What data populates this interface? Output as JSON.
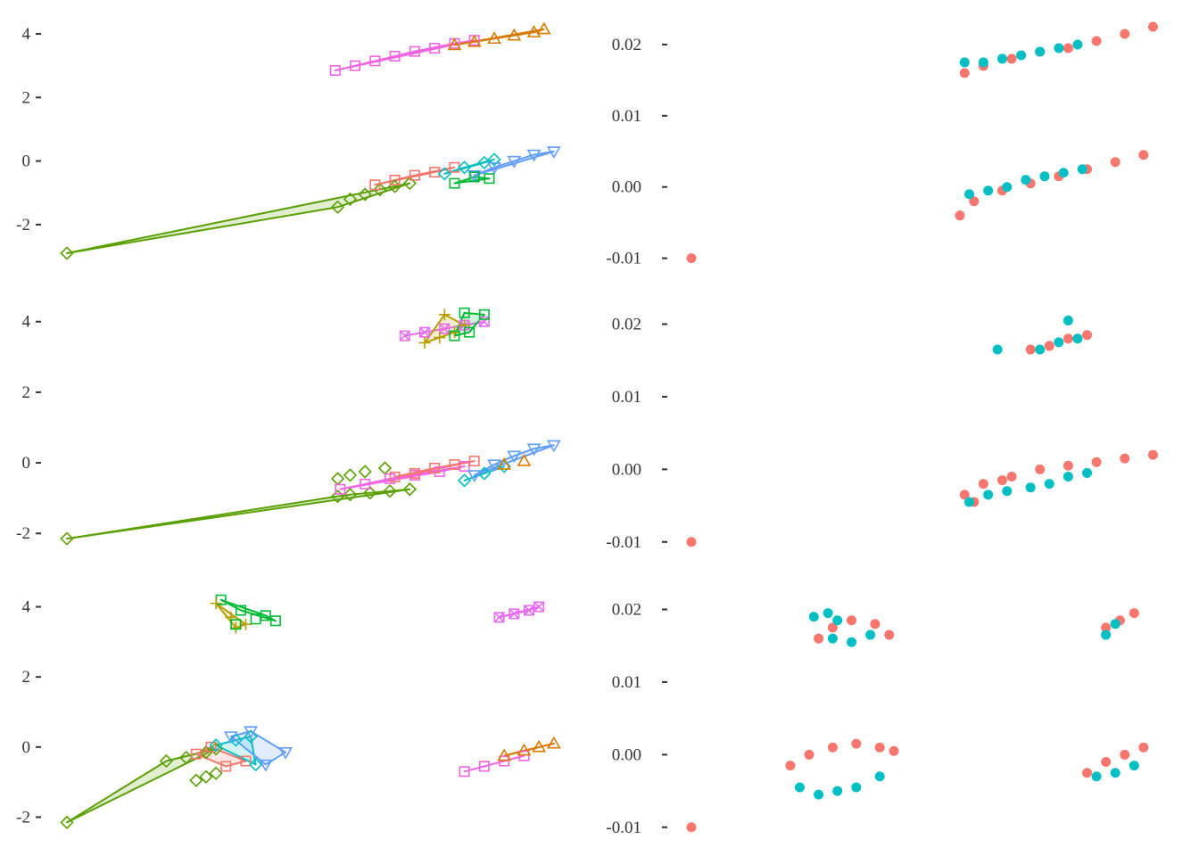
{
  "chart_data": [
    {
      "panel": "row1-left",
      "type": "scatter",
      "yticks": [
        -2,
        0,
        2,
        4
      ],
      "ytick_labels": [
        "-2",
        "0",
        "2",
        "4"
      ],
      "ylim": [
        -3.35,
        4.45
      ],
      "xlim": [
        0,
        1
      ],
      "grid": false,
      "legend": "none",
      "groups": [
        {
          "color": "#F564E3",
          "marker": "square",
          "hull": true,
          "x": [
            0.54,
            0.58,
            0.62,
            0.66,
            0.7,
            0.74,
            0.78,
            0.82
          ],
          "y": [
            2.85,
            3.0,
            3.15,
            3.3,
            3.45,
            3.55,
            3.7,
            3.8
          ]
        },
        {
          "color": "#D97A00",
          "marker": "triangle",
          "hull": true,
          "x": [
            0.78,
            0.82,
            0.86,
            0.9,
            0.94,
            0.96
          ],
          "y": [
            3.65,
            3.75,
            3.85,
            3.95,
            4.05,
            4.15
          ]
        },
        {
          "color": "#5AA000",
          "marker": "diamond",
          "hull": true,
          "x": [
            0.0,
            0.545,
            0.57,
            0.6,
            0.63,
            0.66,
            0.69
          ],
          "y": [
            -2.9,
            -1.45,
            -1.2,
            -1.05,
            -0.9,
            -0.8,
            -0.7
          ]
        },
        {
          "color": "#F8766D",
          "marker": "square",
          "hull": true,
          "x": [
            0.62,
            0.66,
            0.7,
            0.74,
            0.78
          ],
          "y": [
            -0.75,
            -0.6,
            -0.45,
            -0.35,
            -0.2
          ]
        },
        {
          "color": "#00BFC4",
          "marker": "diamond",
          "hull": true,
          "x": [
            0.76,
            0.8,
            0.84,
            0.86
          ],
          "y": [
            -0.4,
            -0.2,
            -0.05,
            0.05
          ]
        },
        {
          "color": "#619CFF",
          "marker": "triangle-down",
          "hull": true,
          "x": [
            0.82,
            0.86,
            0.9,
            0.94,
            0.98
          ],
          "y": [
            -0.45,
            -0.2,
            0.0,
            0.2,
            0.3
          ]
        },
        {
          "color": "#00BA38",
          "marker": "square",
          "hull": true,
          "x": [
            0.78,
            0.82,
            0.85
          ],
          "y": [
            -0.7,
            -0.5,
            -0.55
          ]
        }
      ]
    },
    {
      "panel": "row1-right",
      "type": "scatter",
      "yticks": [
        -0.01,
        0.0,
        0.01,
        0.02
      ],
      "ytick_labels": [
        "-0.01",
        "0.00",
        "0.01",
        "0.02"
      ],
      "ylim": [
        -0.0113,
        0.0235
      ],
      "xlim": [
        0,
        1
      ],
      "grid": false,
      "legend": "none",
      "series": [
        {
          "color": "#F8766D",
          "x": [
            0.0,
            0.58,
            0.62,
            0.68,
            0.74,
            0.8,
            0.86,
            0.92,
            0.98,
            0.57,
            0.6,
            0.66,
            0.72,
            0.78,
            0.84,
            0.9,
            0.96
          ],
          "y": [
            -0.01,
            0.016,
            0.017,
            0.018,
            0.019,
            0.0195,
            0.0205,
            0.0215,
            0.0225,
            -0.004,
            -0.002,
            -0.0005,
            0.0005,
            0.0015,
            0.0025,
            0.0035,
            0.0045
          ]
        },
        {
          "color": "#00BFC4",
          "x": [
            0.58,
            0.62,
            0.66,
            0.7,
            0.74,
            0.78,
            0.82,
            0.59,
            0.63,
            0.67,
            0.71,
            0.75,
            0.79,
            0.83
          ],
          "y": [
            0.0175,
            0.0175,
            0.018,
            0.0185,
            0.019,
            0.0195,
            0.02,
            -0.001,
            -0.0005,
            0.0,
            0.001,
            0.0015,
            0.002,
            0.0025
          ]
        }
      ]
    },
    {
      "panel": "row2-left",
      "type": "scatter",
      "yticks": [
        -2,
        0,
        2,
        4
      ],
      "ytick_labels": [
        "-2",
        "0",
        "2",
        "4"
      ],
      "ylim": [
        -2.55,
        4.65
      ],
      "xlim": [
        0,
        1
      ],
      "grid": false,
      "legend": "none",
      "groups": [
        {
          "color": "#E76BF3",
          "marker": "square-x",
          "hull": true,
          "x": [
            0.68,
            0.72,
            0.76,
            0.8,
            0.84
          ],
          "y": [
            3.6,
            3.7,
            3.8,
            3.9,
            4.0
          ]
        },
        {
          "color": "#B79F00",
          "marker": "plus",
          "hull": true,
          "x": [
            0.72,
            0.75,
            0.78,
            0.8,
            0.76
          ],
          "y": [
            3.4,
            3.55,
            3.7,
            3.9,
            4.2
          ]
        },
        {
          "color": "#00BA38",
          "marker": "square",
          "hull": true,
          "x": [
            0.78,
            0.81,
            0.84,
            0.8
          ],
          "y": [
            3.6,
            3.7,
            4.2,
            4.25
          ]
        },
        {
          "color": "#5AA000",
          "marker": "diamond",
          "hull": true,
          "x": [
            0.0,
            0.545,
            0.57,
            0.61,
            0.65,
            0.69
          ],
          "y": [
            -2.15,
            -0.95,
            -0.9,
            -0.85,
            -0.8,
            -0.75
          ]
        },
        {
          "color": "#5AA000",
          "marker": "diamond",
          "hull": false,
          "x": [
            0.545,
            0.57,
            0.6,
            0.64
          ],
          "y": [
            -0.45,
            -0.35,
            -0.25,
            -0.15
          ]
        },
        {
          "color": "#F564E3",
          "marker": "square",
          "hull": true,
          "x": [
            0.55,
            0.6,
            0.65,
            0.7,
            0.75,
            0.8
          ],
          "y": [
            -0.75,
            -0.6,
            -0.45,
            -0.35,
            -0.25,
            -0.1
          ]
        },
        {
          "color": "#F8766D",
          "marker": "square",
          "hull": true,
          "x": [
            0.66,
            0.7,
            0.74,
            0.78,
            0.82
          ],
          "y": [
            -0.4,
            -0.3,
            -0.15,
            -0.05,
            0.05
          ]
        },
        {
          "color": "#00BFC4",
          "marker": "diamond",
          "hull": true,
          "x": [
            0.8,
            0.84,
            0.88
          ],
          "y": [
            -0.5,
            -0.3,
            -0.1
          ]
        },
        {
          "color": "#619CFF",
          "marker": "triangle-down",
          "hull": true,
          "x": [
            0.82,
            0.86,
            0.9,
            0.94,
            0.98
          ],
          "y": [
            -0.35,
            -0.05,
            0.2,
            0.4,
            0.5
          ]
        },
        {
          "color": "#D97A00",
          "marker": "triangle",
          "hull": false,
          "x": [
            0.88,
            0.92
          ],
          "y": [
            -0.05,
            0.05
          ]
        }
      ]
    },
    {
      "panel": "row2-right",
      "type": "scatter",
      "yticks": [
        -0.01,
        0.0,
        0.01,
        0.02
      ],
      "ytick_labels": [
        "-0.01",
        "0.00",
        "0.01",
        "0.02"
      ],
      "ylim": [
        -0.0115,
        0.0235
      ],
      "xlim": [
        0,
        1
      ],
      "grid": false,
      "legend": "none",
      "series": [
        {
          "color": "#F8766D",
          "x": [
            0.0,
            0.72,
            0.76,
            0.8,
            0.84,
            0.58,
            0.62,
            0.68,
            0.74,
            0.8,
            0.86,
            0.92,
            0.98,
            0.6,
            0.66
          ],
          "y": [
            -0.01,
            0.0165,
            0.017,
            0.018,
            0.0185,
            -0.0035,
            -0.002,
            -0.001,
            0.0,
            0.0005,
            0.001,
            0.0015,
            0.002,
            -0.0045,
            -0.0015
          ]
        },
        {
          "color": "#00BFC4",
          "x": [
            0.65,
            0.74,
            0.78,
            0.82,
            0.8,
            0.59,
            0.63,
            0.67,
            0.72,
            0.76,
            0.8,
            0.84
          ],
          "y": [
            0.0165,
            0.0165,
            0.0175,
            0.018,
            0.0205,
            -0.0045,
            -0.0035,
            -0.003,
            -0.0025,
            -0.002,
            -0.001,
            -0.0005
          ]
        }
      ]
    },
    {
      "panel": "row3-left",
      "type": "scatter",
      "yticks": [
        -2,
        0,
        2,
        4
      ],
      "ytick_labels": [
        "-2",
        "0",
        "2",
        "4"
      ],
      "ylim": [
        -2.6,
        4.65
      ],
      "xlim": [
        0,
        1
      ],
      "grid": false,
      "legend": "none",
      "groups": [
        {
          "color": "#00BA38",
          "marker": "square",
          "hull": true,
          "x": [
            0.31,
            0.35,
            0.4,
            0.42
          ],
          "y": [
            4.2,
            3.9,
            3.75,
            3.6
          ]
        },
        {
          "color": "#B79F00",
          "marker": "plus",
          "hull": true,
          "x": [
            0.3,
            0.33,
            0.36,
            0.34
          ],
          "y": [
            4.1,
            3.7,
            3.5,
            3.4
          ]
        },
        {
          "color": "#00BA38",
          "marker": "square",
          "hull": false,
          "x": [
            0.34,
            0.38
          ],
          "y": [
            3.5,
            3.65
          ]
        },
        {
          "color": "#E76BF3",
          "marker": "square-x",
          "hull": true,
          "x": [
            0.87,
            0.9,
            0.93,
            0.95
          ],
          "y": [
            3.7,
            3.8,
            3.9,
            4.0
          ]
        },
        {
          "color": "#5AA000",
          "marker": "diamond",
          "hull": true,
          "x": [
            0.0,
            0.2,
            0.24,
            0.28,
            0.3
          ],
          "y": [
            -2.15,
            -0.4,
            -0.3,
            -0.15,
            -0.05
          ]
        },
        {
          "color": "#5AA000",
          "marker": "diamond",
          "hull": false,
          "x": [
            0.26,
            0.28,
            0.3
          ],
          "y": [
            -0.95,
            -0.85,
            -0.75
          ]
        },
        {
          "color": "#F8766D",
          "marker": "square",
          "hull": true,
          "x": [
            0.26,
            0.29,
            0.32,
            0.36
          ],
          "y": [
            -0.2,
            0.0,
            -0.55,
            -0.4
          ]
        },
        {
          "color": "#00BFC4",
          "marker": "diamond",
          "hull": true,
          "x": [
            0.3,
            0.34,
            0.37,
            0.38
          ],
          "y": [
            0.05,
            0.2,
            0.3,
            -0.5
          ]
        },
        {
          "color": "#619CFF",
          "marker": "triangle-down",
          "hull": true,
          "x": [
            0.33,
            0.37,
            0.4,
            0.44
          ],
          "y": [
            0.3,
            0.45,
            -0.5,
            -0.15
          ]
        },
        {
          "color": "#F564E3",
          "marker": "square",
          "hull": true,
          "x": [
            0.8,
            0.84,
            0.88,
            0.92
          ],
          "y": [
            -0.7,
            -0.55,
            -0.4,
            -0.25
          ]
        },
        {
          "color": "#D97A00",
          "marker": "triangle",
          "hull": true,
          "x": [
            0.88,
            0.92,
            0.95,
            0.98
          ],
          "y": [
            -0.25,
            -0.1,
            0.0,
            0.1
          ]
        }
      ]
    },
    {
      "panel": "row3-right",
      "type": "scatter",
      "yticks": [
        -0.01,
        0.0,
        0.01,
        0.02
      ],
      "ytick_labels": [
        "-0.01",
        "0.00",
        "0.01",
        "0.02"
      ],
      "ylim": [
        -0.0115,
        0.0235
      ],
      "xlim": [
        0,
        1
      ],
      "grid": false,
      "legend": "none",
      "series": [
        {
          "color": "#F8766D",
          "x": [
            0.0,
            0.27,
            0.3,
            0.34,
            0.39,
            0.42,
            0.21,
            0.25,
            0.3,
            0.35,
            0.4,
            0.43,
            0.88,
            0.91,
            0.94,
            0.84,
            0.88,
            0.92,
            0.96
          ],
          "y": [
            -0.01,
            0.016,
            0.0175,
            0.0185,
            0.018,
            0.0165,
            -0.0015,
            0.0,
            0.001,
            0.0015,
            0.001,
            0.0005,
            0.0175,
            0.0185,
            0.0195,
            -0.0025,
            -0.001,
            0.0,
            0.001
          ]
        },
        {
          "color": "#00BFC4",
          "x": [
            0.26,
            0.29,
            0.31,
            0.3,
            0.34,
            0.38,
            0.23,
            0.27,
            0.31,
            0.35,
            0.4,
            0.88,
            0.86,
            0.9,
            0.94,
            0.9
          ],
          "y": [
            0.019,
            0.0195,
            0.0185,
            0.016,
            0.0155,
            0.0165,
            -0.0045,
            -0.0055,
            -0.005,
            -0.0045,
            -0.003,
            0.0165,
            -0.003,
            -0.0025,
            -0.0015,
            0.018
          ]
        }
      ]
    }
  ]
}
